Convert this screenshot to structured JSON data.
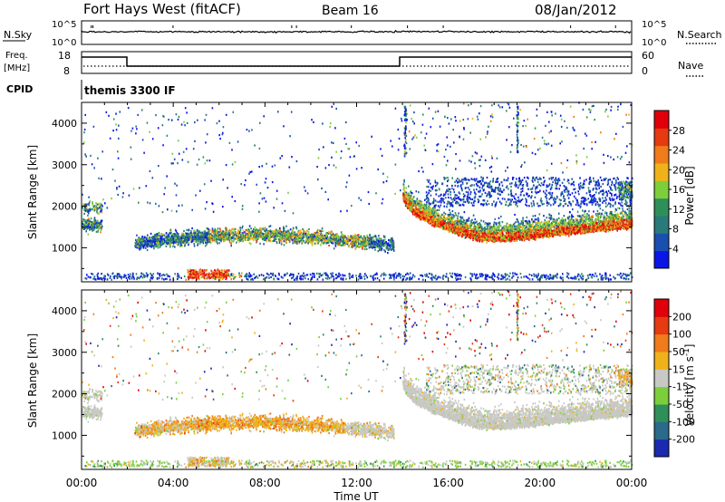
{
  "header": {
    "station": "Fort Hays West (fitACF)",
    "beam": "Beam 16",
    "date": "08/Jan/2012"
  },
  "noise_panel": {
    "left_label": "N.Sky",
    "left_ticks": [
      "10^5",
      "10^0"
    ],
    "right_ticks": [
      "10^5",
      "10^0"
    ],
    "right_label": "N.Search"
  },
  "freq_panel": {
    "left_label_1": "Freq.",
    "left_label_2": "[MHz]",
    "left_ticks": [
      "18",
      "8"
    ],
    "right_ticks": [
      "60",
      "0"
    ],
    "right_label": "Nave"
  },
  "cpid_panel": {
    "left_label": "CPID",
    "program": "themis 3300 IF"
  },
  "chart_data": [
    {
      "type": "heatmap",
      "name": "power",
      "ylabel": "Slant Range [km]",
      "y_ticks": [
        "1000",
        "2000",
        "3000",
        "4000"
      ],
      "y_values": [
        1000,
        2000,
        3000,
        4000
      ],
      "ylim": [
        180,
        4500
      ],
      "colorbar": {
        "label": "Power [dB]",
        "ticks": [
          "4",
          "8",
          "12",
          "16",
          "20",
          "24",
          "28"
        ],
        "values": [
          4,
          8,
          12,
          16,
          20,
          24,
          28
        ],
        "range": [
          0,
          32
        ],
        "colors": [
          "#0a16e6",
          "#1a4fb0",
          "#2a7a7a",
          "#2f8f5a",
          "#7ccf3a",
          "#f0b21a",
          "#f07b1a",
          "#e63a10",
          "#e0000a"
        ]
      }
    },
    {
      "type": "heatmap",
      "name": "velocity",
      "ylabel": "Slant Range [km]",
      "y_ticks": [
        "1000",
        "2000",
        "3000",
        "4000"
      ],
      "y_values": [
        1000,
        2000,
        3000,
        4000
      ],
      "ylim": [
        180,
        4500
      ],
      "colorbar": {
        "label": "Velocity [m s",
        "label_sup": "-1",
        "label_end": "]",
        "ticks": [
          "200",
          "100",
          "50",
          "15",
          "-15",
          "-50",
          "-100",
          "-200"
        ],
        "colors": [
          "#1a2ab0",
          "#2a6a8a",
          "#2f8f5a",
          "#7ccf3a",
          "#c8c8c4",
          "#f0b21a",
          "#f07b1a",
          "#e63a10",
          "#e0000a"
        ]
      }
    }
  ],
  "x_axis": {
    "label": "Time UT",
    "ticks": [
      "00:00",
      "04:00",
      "08:00",
      "12:00",
      "16:00",
      "20:00",
      "00:00"
    ],
    "hours": [
      0,
      4,
      8,
      12,
      16,
      20,
      24
    ]
  },
  "colors": {
    "frame": "#000000",
    "grey_scatter": "#c8c8c4"
  }
}
